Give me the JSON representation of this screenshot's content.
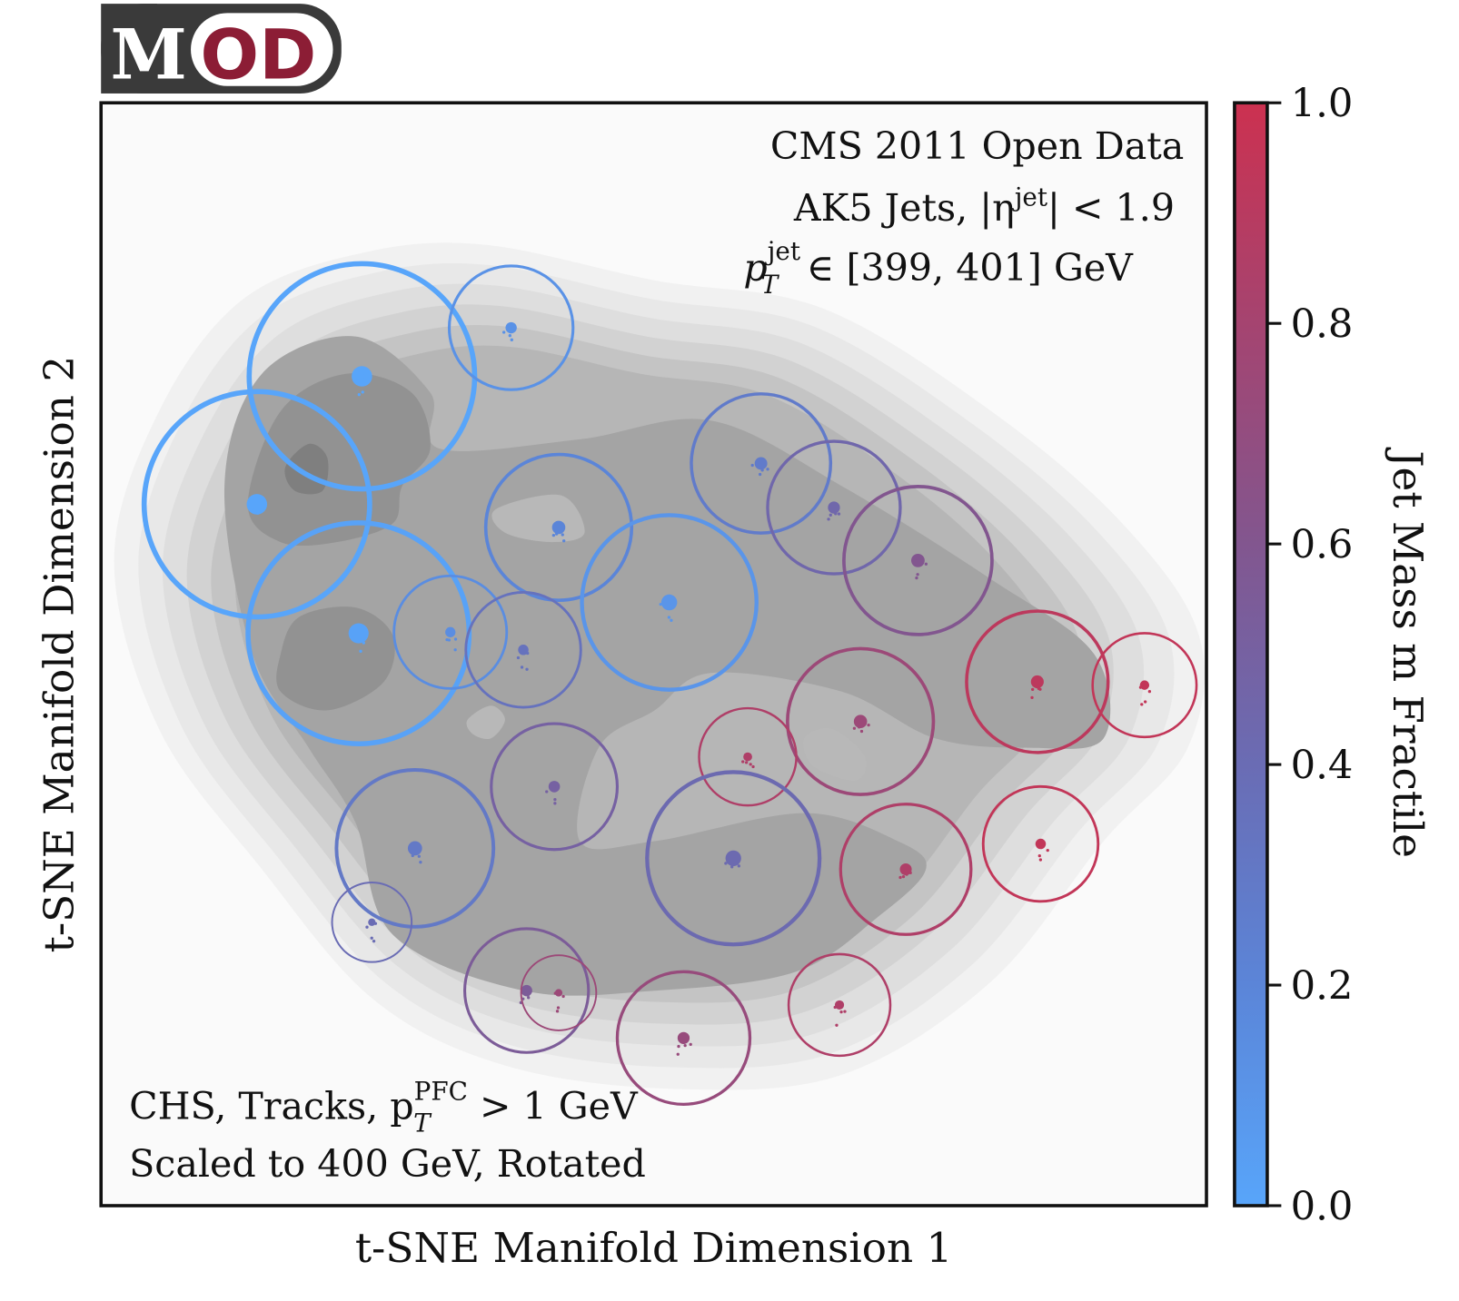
{
  "logo": {
    "text": "MOD",
    "left": "M",
    "right": "OD",
    "colors": {
      "box": "#3a3a3a",
      "accent": "#8c1d35"
    }
  },
  "chart_data": {
    "type": "scatter",
    "description_free": true,
    "xlabel": "t-SNE Manifold Dimension 1",
    "ylabel": "t-SNE Manifold Dimension 2",
    "xlim": [
      0,
      100
    ],
    "ylim": [
      0,
      100
    ],
    "ticks_shown": false,
    "grid": false,
    "background": "density contours (gray)",
    "annotations": {
      "top_right": {
        "line1": "CMS 2011 Open Data",
        "line2": {
          "pre": "AK5 Jets, |η",
          "sup": "jet",
          "post": "| < 1.9"
        },
        "line3": {
          "pre": "p",
          "sup": "jet",
          "sub": "T",
          "post": " ∈ [399, 401] GeV"
        }
      },
      "bottom_left": {
        "line1": {
          "pre": "CHS, Tracks, p",
          "sup": "PFC",
          "sub": "T",
          "post": " > 1 GeV"
        },
        "line2": "Scaled to 400 GeV, Rotated"
      }
    },
    "colorbar": {
      "label": "Jet Mass m Fractile",
      "range": [
        0,
        1
      ],
      "ticks": [
        "0.0",
        "0.2",
        "0.4",
        "0.6",
        "0.8",
        "1.0"
      ],
      "colors": [
        "#58a5fa",
        "#5b85d8",
        "#6a6cb4",
        "#82568f",
        "#a54470",
        "#cc3150"
      ]
    },
    "points": [
      {
        "x": 23.6,
        "y": 75.2,
        "r": 10.2,
        "c": 0.0
      },
      {
        "x": 14.1,
        "y": 63.6,
        "r": 10.2,
        "c": 0.0
      },
      {
        "x": 23.3,
        "y": 51.9,
        "r": 10.0,
        "c": 0.02
      },
      {
        "x": 37.1,
        "y": 79.6,
        "r": 5.6,
        "c": 0.12
      },
      {
        "x": 41.4,
        "y": 61.5,
        "r": 6.6,
        "c": 0.2
      },
      {
        "x": 51.4,
        "y": 54.7,
        "r": 7.9,
        "c": 0.1
      },
      {
        "x": 31.6,
        "y": 52.0,
        "r": 5.1,
        "c": 0.15
      },
      {
        "x": 38.2,
        "y": 50.4,
        "r": 5.2,
        "c": 0.35
      },
      {
        "x": 59.7,
        "y": 67.3,
        "r": 6.3,
        "c": 0.28
      },
      {
        "x": 66.3,
        "y": 63.3,
        "r": 6.0,
        "c": 0.45
      },
      {
        "x": 73.9,
        "y": 58.5,
        "r": 6.7,
        "c": 0.6
      },
      {
        "x": 84.7,
        "y": 47.5,
        "r": 6.4,
        "c": 0.92
      },
      {
        "x": 94.4,
        "y": 47.2,
        "r": 4.7,
        "c": 0.95
      },
      {
        "x": 68.7,
        "y": 43.9,
        "r": 6.6,
        "c": 0.75
      },
      {
        "x": 58.5,
        "y": 40.7,
        "r": 4.4,
        "c": 0.85
      },
      {
        "x": 41.0,
        "y": 38.0,
        "r": 5.7,
        "c": 0.5
      },
      {
        "x": 28.4,
        "y": 32.4,
        "r": 7.1,
        "c": 0.3
      },
      {
        "x": 24.5,
        "y": 25.7,
        "r": 3.6,
        "c": 0.4
      },
      {
        "x": 57.2,
        "y": 31.5,
        "r": 7.8,
        "c": 0.42
      },
      {
        "x": 72.8,
        "y": 30.5,
        "r": 5.9,
        "c": 0.85
      },
      {
        "x": 85.0,
        "y": 32.8,
        "r": 5.2,
        "c": 0.95
      },
      {
        "x": 38.5,
        "y": 19.5,
        "r": 5.6,
        "c": 0.55
      },
      {
        "x": 41.4,
        "y": 19.3,
        "r": 3.4,
        "c": 0.75
      },
      {
        "x": 52.7,
        "y": 15.2,
        "r": 6.0,
        "c": 0.72
      },
      {
        "x": 66.8,
        "y": 18.2,
        "r": 4.6,
        "c": 0.85
      }
    ]
  }
}
